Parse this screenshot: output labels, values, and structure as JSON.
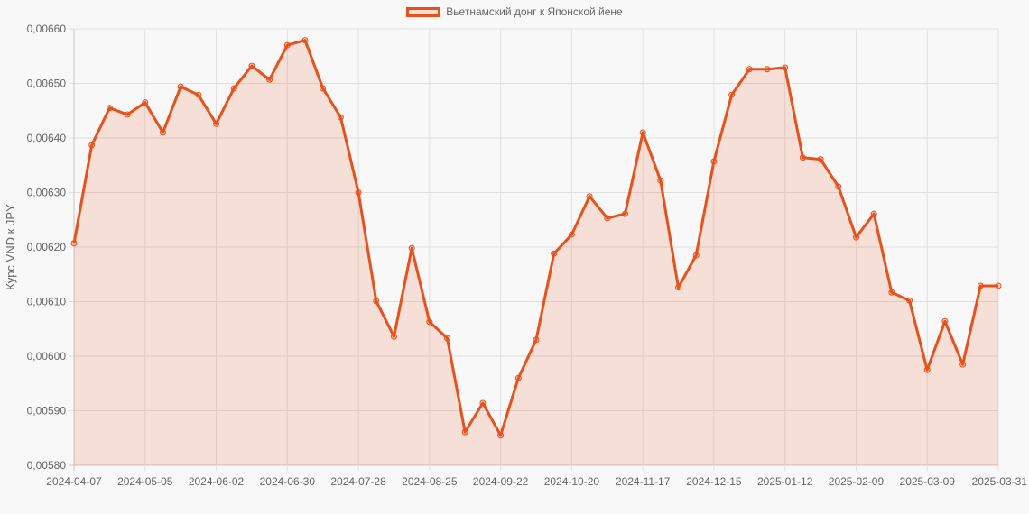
{
  "legend": {
    "label": "Вьетнамский донг к Японской йене",
    "color": "#e8501c",
    "fill": "rgba(232,80,28,0.15)"
  },
  "chart_data": {
    "type": "line",
    "title": "",
    "xlabel": "",
    "ylabel": "Курс VND к JPY",
    "ylim": [
      0.0058,
      0.0066
    ],
    "yticks": [
      "0,00660",
      "0,00650",
      "0,00640",
      "0,00630",
      "0,00620",
      "0,00610",
      "0,00600",
      "0,00590",
      "0,00580"
    ],
    "xticks": [
      "2024-04-07",
      "2024-05-05",
      "2024-06-02",
      "2024-06-30",
      "2024-07-28",
      "2024-08-25",
      "2024-09-22",
      "2024-10-20",
      "2024-11-17",
      "2024-12-15",
      "2025-01-12",
      "2025-02-09",
      "2025-03-09",
      "2025-03-31"
    ],
    "xtick_indices": [
      0,
      4,
      8,
      12,
      16,
      20,
      24,
      28,
      32,
      36,
      40,
      44,
      48,
      52
    ],
    "grid": true,
    "legend_position": "top",
    "series": [
      {
        "name": "Вьетнамский донг к Японской йене",
        "color": "#e8501c",
        "filled": true,
        "values": [
          0.006207,
          0.006387,
          0.006455,
          0.006443,
          0.006465,
          0.00641,
          0.006494,
          0.006479,
          0.006426,
          0.006491,
          0.006532,
          0.006507,
          0.00657,
          0.006579,
          0.006491,
          0.006438,
          0.0063,
          0.006101,
          0.006036,
          0.006198,
          0.006063,
          0.006033,
          0.005861,
          0.005914,
          0.005855,
          0.00596,
          0.00603,
          0.006188,
          0.006223,
          0.006293,
          0.006253,
          0.006261,
          0.00641,
          0.006322,
          0.006126,
          0.006185,
          0.006357,
          0.006479,
          0.006526,
          0.006526,
          0.006529,
          0.006364,
          0.006361,
          0.006311,
          0.006218,
          0.006261,
          0.006117,
          0.006102,
          0.005975,
          0.006064,
          0.005985,
          0.006129,
          0.006129
        ]
      }
    ]
  }
}
